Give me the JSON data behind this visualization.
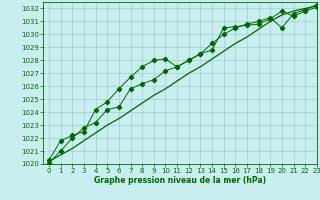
{
  "xlabel": "Graphe pression niveau de la mer (hPa)",
  "background_color": "#c8eef0",
  "grid_color": "#9ecece",
  "line_color": "#006600",
  "xlim": [
    -0.5,
    23
  ],
  "ylim": [
    1020,
    1032.5
  ],
  "yticks": [
    1020,
    1021,
    1022,
    1023,
    1024,
    1025,
    1026,
    1027,
    1028,
    1029,
    1030,
    1031,
    1032
  ],
  "xticks": [
    0,
    1,
    2,
    3,
    4,
    5,
    6,
    7,
    8,
    9,
    10,
    11,
    12,
    13,
    14,
    15,
    16,
    17,
    18,
    19,
    20,
    21,
    22,
    23
  ],
  "series_straight_x": [
    0,
    1,
    2,
    3,
    4,
    5,
    6,
    7,
    8,
    9,
    10,
    11,
    12,
    13,
    14,
    15,
    16,
    17,
    18,
    19,
    20,
    21,
    22,
    23
  ],
  "series_straight_y": [
    1020.2,
    1020.7,
    1021.2,
    1021.8,
    1022.4,
    1023.0,
    1023.5,
    1024.1,
    1024.7,
    1025.3,
    1025.8,
    1026.4,
    1027.0,
    1027.5,
    1028.1,
    1028.7,
    1029.3,
    1029.8,
    1030.4,
    1031.0,
    1031.5,
    1031.8,
    1032.0,
    1032.2
  ],
  "series_upper_x": [
    0,
    1,
    2,
    3,
    4,
    5,
    6,
    7,
    8,
    9,
    10,
    11,
    12,
    13,
    14,
    15,
    16,
    17,
    18,
    19,
    20,
    21,
    22,
    23
  ],
  "series_upper_y": [
    1020.3,
    1021.8,
    1022.2,
    1022.5,
    1024.2,
    1024.8,
    1025.8,
    1026.7,
    1027.5,
    1028.0,
    1028.1,
    1027.5,
    1028.0,
    1028.5,
    1028.8,
    1030.5,
    1030.6,
    1030.7,
    1030.8,
    1031.2,
    1031.8,
    1031.4,
    1031.8,
    1032.1
  ],
  "series_lower_x": [
    0,
    1,
    2,
    3,
    4,
    5,
    6,
    7,
    8,
    9,
    10,
    11,
    12,
    13,
    14,
    15,
    16,
    17,
    18,
    19,
    20,
    21,
    22,
    23
  ],
  "series_lower_y": [
    1020.1,
    1021.0,
    1022.0,
    1022.8,
    1023.2,
    1024.2,
    1024.4,
    1025.8,
    1026.2,
    1026.5,
    1027.2,
    1027.5,
    1028.0,
    1028.5,
    1029.3,
    1030.0,
    1030.5,
    1030.8,
    1031.0,
    1031.3,
    1030.5,
    1031.6,
    1031.9,
    1032.3
  ]
}
